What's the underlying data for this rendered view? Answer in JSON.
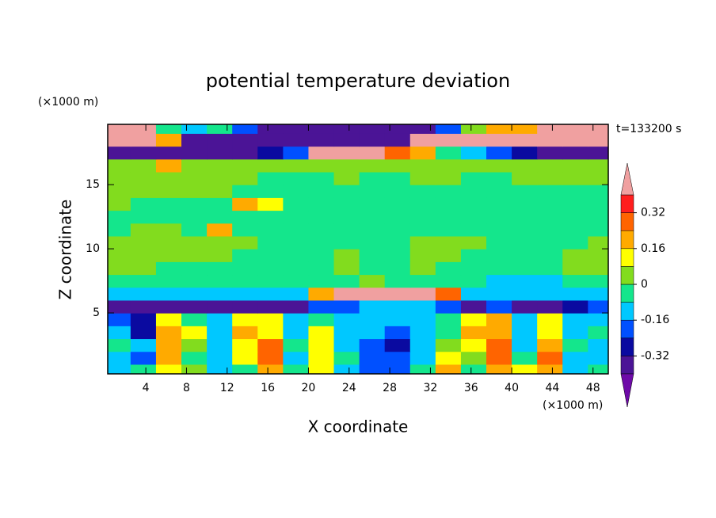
{
  "chart_data": {
    "type": "contour",
    "title": "potential temperature deviation",
    "xlabel": "X coordinate",
    "ylabel": "Z coordinate",
    "xunit": "(×1000 m)",
    "yunit": "(×1000 m)",
    "time_label": "t=133200 s",
    "xlim": [
      0.25,
      49.5
    ],
    "ylim": [
      0.25,
      19.7
    ],
    "xticks": [
      4,
      8,
      12,
      16,
      20,
      24,
      28,
      32,
      36,
      40,
      44,
      48
    ],
    "yticks": [
      5,
      10,
      15
    ],
    "levels": [
      -0.4,
      -0.32,
      -0.24,
      -0.16,
      -0.08,
      0,
      0.08,
      0.16,
      0.24,
      0.32,
      0.4
    ],
    "colors": [
      "#6e0aa8",
      "#4b1496",
      "#0a0aa0",
      "#0050ff",
      "#00c8ff",
      "#14e68c",
      "#82dc1e",
      "#ffff00",
      "#ffaa00",
      "#ff6400",
      "#ff1e1e",
      "#f0a0a0"
    ],
    "colorbar_ticks": [
      0.32,
      0.16,
      0,
      -0.16,
      -0.32
    ],
    "x": [
      1.25,
      3.75,
      6.25,
      8.75,
      11.25,
      13.75,
      16.25,
      18.75,
      21.25,
      23.75,
      26.25,
      28.75,
      31.25,
      33.75,
      36.25,
      38.75,
      41.25,
      43.75,
      46.25,
      48.75
    ],
    "y": [
      0.5,
      1.5,
      2.5,
      3.5,
      4.5,
      5.5,
      6.5,
      7.5,
      8.5,
      9.5,
      10.5,
      11.5,
      12.5,
      13.5,
      14.5,
      15.5,
      16.5,
      17.5,
      18.5,
      19.5
    ],
    "z": [
      [
        -0.1,
        -0.04,
        0.1,
        0.02,
        -0.1,
        -0.04,
        0.2,
        -0.04,
        0.12,
        -0.1,
        -0.2,
        -0.2,
        -0.04,
        0.2,
        -0.04,
        0.2,
        0.1,
        0.2,
        -0.1,
        -0.04
      ],
      [
        -0.1,
        -0.2,
        0.2,
        -0.04,
        -0.12,
        0.1,
        0.25,
        -0.1,
        0.15,
        -0.04,
        -0.2,
        -0.2,
        -0.1,
        0.12,
        0.04,
        0.25,
        -0.04,
        0.25,
        -0.1,
        -0.12
      ],
      [
        -0.04,
        -0.12,
        0.2,
        0.04,
        -0.1,
        0.12,
        0.3,
        -0.04,
        0.1,
        -0.1,
        -0.2,
        -0.25,
        -0.12,
        0.04,
        0.12,
        0.3,
        -0.1,
        0.2,
        -0.04,
        -0.1
      ],
      [
        -0.12,
        -0.3,
        0.22,
        0.1,
        -0.1,
        0.2,
        0.15,
        -0.1,
        0.1,
        -0.12,
        -0.12,
        -0.2,
        -0.1,
        -0.04,
        0.2,
        0.2,
        -0.12,
        0.15,
        -0.12,
        -0.04
      ],
      [
        -0.2,
        -0.3,
        0.1,
        -0.04,
        -0.12,
        0.12,
        0.1,
        -0.12,
        -0.04,
        -0.12,
        -0.12,
        -0.1,
        -0.12,
        -0.04,
        0.1,
        0.2,
        -0.1,
        0.1,
        -0.1,
        -0.12
      ],
      [
        -0.36,
        -0.36,
        -0.36,
        -0.36,
        -0.36,
        -0.36,
        -0.36,
        -0.36,
        -0.2,
        -0.2,
        -0.12,
        -0.12,
        -0.12,
        -0.2,
        -0.36,
        -0.2,
        -0.36,
        -0.36,
        -0.3,
        -0.2
      ],
      [
        -0.12,
        -0.12,
        -0.12,
        -0.12,
        -0.12,
        -0.12,
        -0.12,
        -0.12,
        0.2,
        0.45,
        0.45,
        0.45,
        0.45,
        0.3,
        -0.1,
        -0.12,
        -0.12,
        -0.12,
        -0.12,
        -0.12
      ],
      [
        -0.04,
        -0.04,
        -0.04,
        -0.04,
        -0.04,
        -0.04,
        -0.04,
        -0.04,
        -0.04,
        -0.04,
        0.04,
        -0.04,
        -0.04,
        -0.04,
        -0.04,
        -0.1,
        -0.1,
        -0.1,
        -0.04,
        -0.04
      ],
      [
        0.04,
        0.04,
        -0.04,
        -0.04,
        -0.04,
        -0.04,
        -0.04,
        -0.04,
        -0.04,
        0.04,
        -0.04,
        -0.04,
        0.04,
        -0.04,
        -0.04,
        -0.04,
        -0.04,
        -0.04,
        0.04,
        0.04
      ],
      [
        0.04,
        0.04,
        0.04,
        0.04,
        0.04,
        -0.04,
        -0.04,
        -0.04,
        -0.04,
        0.04,
        -0.04,
        -0.04,
        0.04,
        0.04,
        -0.04,
        -0.04,
        -0.04,
        -0.04,
        0.04,
        0.04
      ],
      [
        0.04,
        0.04,
        0.04,
        0.04,
        0.04,
        0.04,
        -0.04,
        -0.04,
        -0.04,
        -0.04,
        -0.04,
        -0.04,
        0.04,
        0.04,
        0.04,
        -0.04,
        -0.04,
        -0.04,
        -0.04,
        0.04
      ],
      [
        -0.04,
        0.04,
        0.04,
        -0.04,
        0.2,
        -0.04,
        -0.04,
        -0.04,
        -0.04,
        -0.04,
        -0.04,
        -0.04,
        -0.04,
        -0.04,
        -0.04,
        -0.04,
        -0.04,
        -0.04,
        -0.04,
        -0.04
      ],
      [
        -0.04,
        -0.04,
        -0.04,
        -0.04,
        -0.04,
        -0.04,
        -0.04,
        -0.04,
        -0.04,
        -0.04,
        -0.04,
        -0.04,
        -0.04,
        -0.04,
        -0.04,
        -0.04,
        -0.04,
        -0.04,
        -0.04,
        -0.04
      ],
      [
        0.04,
        -0.04,
        -0.04,
        -0.04,
        -0.04,
        0.2,
        0.1,
        -0.04,
        -0.04,
        -0.04,
        -0.04,
        -0.04,
        -0.04,
        -0.04,
        -0.04,
        -0.04,
        -0.04,
        -0.04,
        -0.04,
        -0.04
      ],
      [
        0.04,
        0.04,
        0.04,
        0.04,
        0.04,
        -0.04,
        -0.04,
        -0.04,
        -0.04,
        -0.04,
        -0.04,
        -0.04,
        -0.04,
        -0.04,
        -0.04,
        -0.04,
        -0.04,
        -0.04,
        -0.04,
        -0.04
      ],
      [
        0.04,
        0.04,
        0.04,
        0.04,
        0.04,
        0.04,
        -0.04,
        -0.04,
        -0.04,
        0.04,
        -0.04,
        -0.04,
        0.04,
        0.04,
        -0.04,
        -0.04,
        0.04,
        0.04,
        0.04,
        0.04
      ],
      [
        0.04,
        0.04,
        0.2,
        0.04,
        0.04,
        0.04,
        0.04,
        0.04,
        0.04,
        0.04,
        0.04,
        0.04,
        0.04,
        0.04,
        0.04,
        0.04,
        0.04,
        0.04,
        0.04,
        0.04
      ],
      [
        -0.36,
        -0.36,
        -0.36,
        -0.36,
        -0.36,
        -0.36,
        -0.3,
        -0.2,
        0.45,
        0.45,
        0.45,
        0.3,
        0.2,
        -0.04,
        -0.12,
        -0.2,
        -0.3,
        -0.36,
        -0.36,
        -0.36
      ],
      [
        0.45,
        0.45,
        0.2,
        -0.36,
        -0.36,
        -0.36,
        -0.36,
        -0.36,
        -0.36,
        -0.36,
        -0.36,
        -0.36,
        0.45,
        0.45,
        0.45,
        0.45,
        0.45,
        0.45,
        0.45,
        0.45
      ],
      [
        0.45,
        0.45,
        -0.04,
        -0.12,
        -0.04,
        -0.2,
        -0.36,
        -0.36,
        -0.36,
        -0.36,
        -0.36,
        -0.36,
        -0.36,
        -0.2,
        0.04,
        0.2,
        0.2,
        0.45,
        0.45,
        0.45
      ]
    ]
  }
}
